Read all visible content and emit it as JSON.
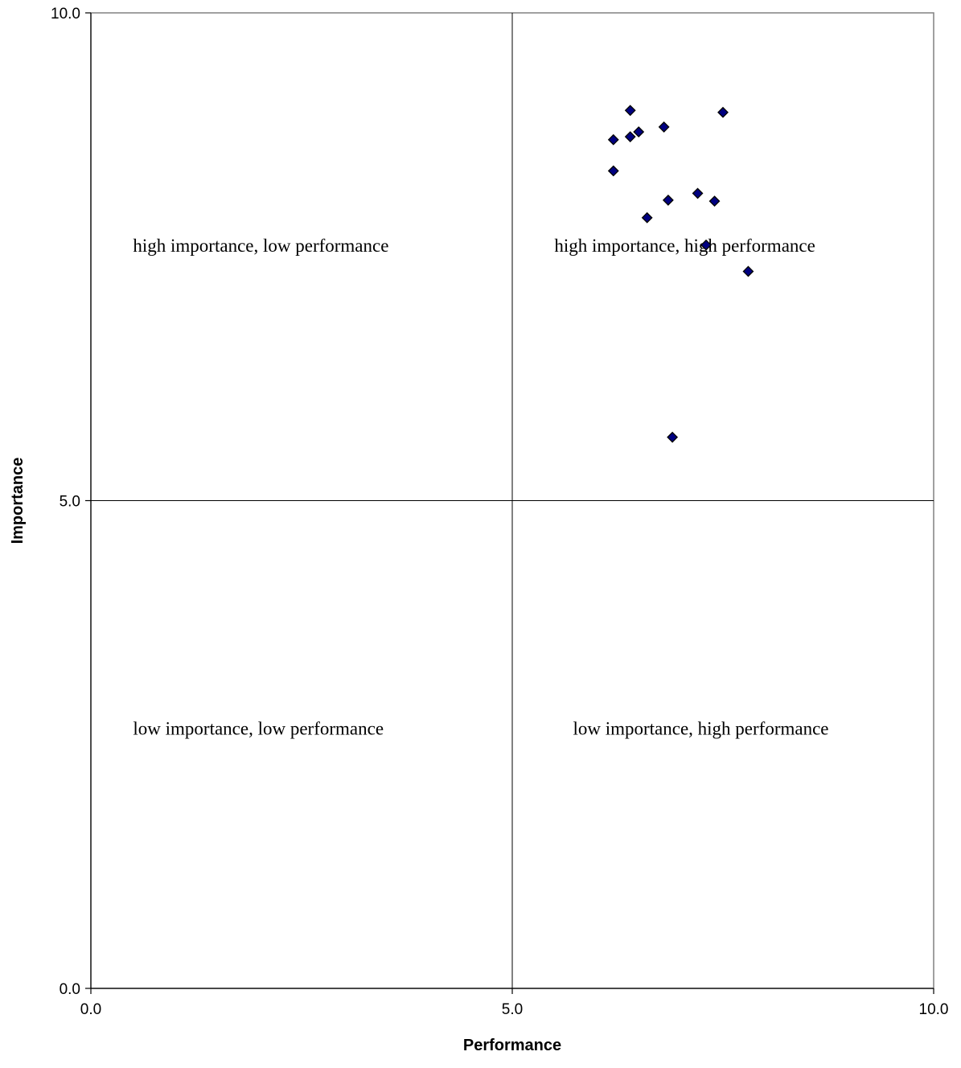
{
  "chart_data": {
    "type": "scatter",
    "title": "",
    "xlabel": "Performance",
    "ylabel": "Importance",
    "xlim": [
      0,
      10
    ],
    "ylim": [
      0,
      10
    ],
    "x_ticks": [
      "0.0",
      "5.0",
      "10.0"
    ],
    "y_ticks": [
      "0.0",
      "5.0",
      "10.0"
    ],
    "x_tick_values": [
      0,
      5,
      10
    ],
    "y_tick_values": [
      0,
      5,
      10
    ],
    "grid": false,
    "quadrant_lines": {
      "x": 5,
      "y": 5
    },
    "marker_color": "#000080",
    "marker_edge_color": "#000000",
    "marker_shape": "diamond",
    "series": [
      {
        "points": [
          {
            "x": 6.4,
            "y": 9.0
          },
          {
            "x": 7.5,
            "y": 8.98
          },
          {
            "x": 6.8,
            "y": 8.83
          },
          {
            "x": 6.5,
            "y": 8.78
          },
          {
            "x": 6.4,
            "y": 8.73
          },
          {
            "x": 6.2,
            "y": 8.7
          },
          {
            "x": 6.2,
            "y": 8.38
          },
          {
            "x": 7.2,
            "y": 8.15
          },
          {
            "x": 6.85,
            "y": 8.08
          },
          {
            "x": 7.4,
            "y": 8.07
          },
          {
            "x": 6.6,
            "y": 7.9
          },
          {
            "x": 7.3,
            "y": 7.62
          },
          {
            "x": 7.8,
            "y": 7.35
          },
          {
            "x": 6.9,
            "y": 5.65
          }
        ]
      }
    ],
    "annotations": [
      {
        "text": "high importance, low performance",
        "x": 0.5,
        "y": 7.55
      },
      {
        "text": "high importance, high performance",
        "x": 5.5,
        "y": 7.55
      },
      {
        "text": "low importance, low performance",
        "x": 0.5,
        "y": 2.6
      },
      {
        "text": "low importance, high performance",
        "x": 5.72,
        "y": 2.6
      }
    ]
  }
}
